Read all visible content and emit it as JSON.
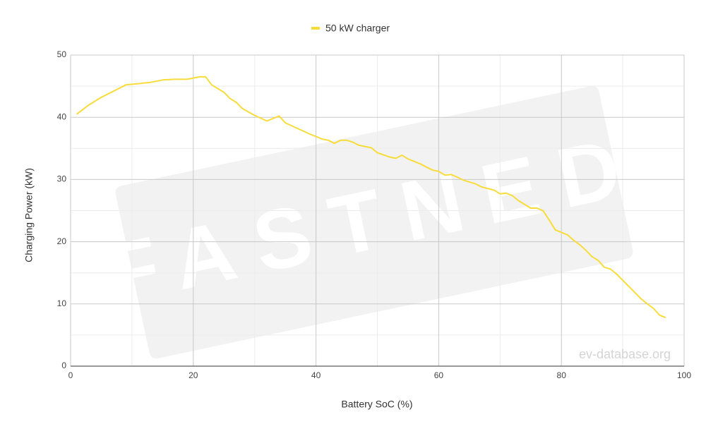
{
  "chart_data": {
    "type": "line",
    "x_label": "Battery SoC (%)",
    "y_label": "Charging Power (kW)",
    "watermarks": [
      "FASTNED",
      "ev-database.org"
    ],
    "xlim": [
      0,
      100
    ],
    "xticks": [
      0,
      20,
      40,
      60,
      80,
      100
    ],
    "ylim": [
      0,
      50
    ],
    "yticks": [
      0,
      10,
      20,
      30,
      40,
      50
    ],
    "grid": true,
    "minor_grid": true,
    "legend": "top",
    "series": [
      {
        "name": "50 kW charger",
        "color": "#f7dc3b",
        "x": [
          1,
          3,
          5,
          7,
          9,
          11,
          13,
          15,
          17,
          19,
          21,
          22,
          23,
          25,
          26,
          27,
          28,
          30,
          32,
          34,
          35,
          37,
          39,
          41,
          42,
          43,
          44,
          45,
          46,
          47,
          49,
          50,
          52,
          53,
          54,
          55,
          57,
          59,
          60,
          61,
          62,
          63,
          64,
          66,
          67,
          69,
          70,
          71,
          72,
          73,
          75,
          76,
          77,
          78,
          79,
          80,
          81,
          82,
          83,
          84,
          85,
          86,
          87,
          88,
          89,
          90,
          91,
          92,
          93,
          94,
          95,
          96,
          97
        ],
        "values": [
          40.5,
          42,
          43.2,
          44.2,
          45.2,
          45.4,
          45.6,
          46,
          46.1,
          46.1,
          46.5,
          46.5,
          45.2,
          44,
          43,
          42.4,
          41.4,
          40.3,
          39.4,
          40.2,
          39.1,
          38.2,
          37.3,
          36.5,
          36.3,
          35.8,
          36.3,
          36.3,
          36,
          35.5,
          35.1,
          34.3,
          33.6,
          33.4,
          33.9,
          33.3,
          32.5,
          31.5,
          31.3,
          30.7,
          30.8,
          30.4,
          29.9,
          29.3,
          28.8,
          28.3,
          27.7,
          27.8,
          27.4,
          26.6,
          25.4,
          25.4,
          25,
          23.5,
          21.9,
          21.5,
          21.1,
          20.2,
          19.5,
          18.6,
          17.6,
          17,
          15.9,
          15.6,
          14.8,
          13.8,
          12.8,
          11.8,
          10.8,
          10,
          9.3,
          8.2,
          7.8
        ]
      }
    ]
  }
}
